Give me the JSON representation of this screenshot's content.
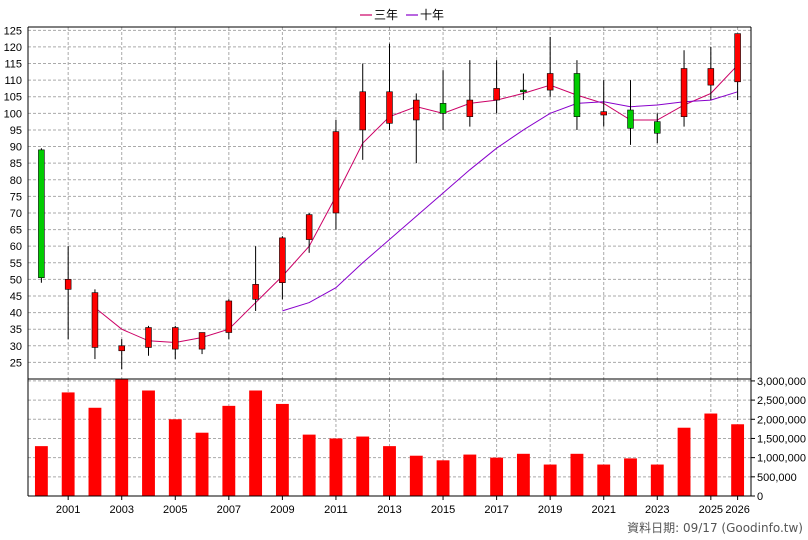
{
  "legend": [
    {
      "label": "三年",
      "color": "#cc0066"
    },
    {
      "label": "十年",
      "color": "#8800cc"
    }
  ],
  "footer": "資料日期: 09/17 (Goodinfo.tw)",
  "colors": {
    "up": "#ff0000",
    "down": "#00cc00",
    "volume": "#ff0000",
    "grid": "#aaaaaa",
    "wick": "#000000"
  },
  "chart_data": [
    {
      "type": "candlestick",
      "title": "",
      "x": [
        "2000",
        "2001",
        "2002",
        "2003",
        "2004",
        "2005",
        "2006",
        "2007",
        "2008",
        "2009",
        "2010",
        "2011",
        "2012",
        "2013",
        "2014",
        "2015",
        "2016",
        "2017",
        "2018",
        "2019",
        "2020",
        "2021",
        "2022",
        "2023",
        "2024",
        "2025",
        "2026"
      ],
      "open": [
        89,
        47,
        29.5,
        28.5,
        29.5,
        29,
        29,
        34,
        44,
        49,
        62,
        70,
        95,
        97,
        98,
        103,
        99,
        104,
        107,
        107,
        112,
        99.5,
        101,
        97.5,
        99,
        108.5,
        109.5
      ],
      "close": [
        50.5,
        50,
        46,
        30,
        35.5,
        35.5,
        34,
        43.5,
        48.5,
        62.5,
        69.5,
        94.5,
        106.5,
        106.5,
        104,
        100,
        104,
        107.5,
        106.5,
        112,
        99,
        100.5,
        95.5,
        94,
        113.5,
        113.5,
        124
      ],
      "high": [
        89.5,
        60,
        47,
        32,
        36,
        36,
        34,
        44,
        60,
        63,
        70,
        98,
        115,
        121,
        106,
        113,
        116,
        116,
        112,
        123,
        116,
        110,
        110,
        100,
        119,
        120,
        124
      ],
      "low": [
        49,
        32,
        26,
        23,
        27,
        26,
        27.5,
        32,
        40.5,
        44,
        58,
        65,
        86,
        95,
        85,
        95,
        96,
        100,
        104,
        105,
        95,
        96,
        90.5,
        91,
        96,
        104,
        104
      ],
      "series": [
        {
          "name": "三年",
          "values": [
            null,
            null,
            41.5,
            35,
            31.5,
            31,
            32.5,
            35,
            43,
            51,
            60,
            75,
            91,
            99,
            102,
            100,
            103,
            104,
            106,
            108.5,
            105.5,
            103,
            98,
            98,
            102.5,
            106,
            114.5
          ]
        },
        {
          "name": "十年",
          "values": [
            null,
            null,
            null,
            null,
            null,
            null,
            null,
            null,
            null,
            40.5,
            43,
            47.5,
            55,
            62,
            69,
            76,
            83,
            89.5,
            95,
            100,
            103,
            103.5,
            102,
            102.5,
            103.5,
            104,
            106.5
          ]
        }
      ],
      "ylim": [
        20,
        126
      ],
      "yticks": [
        25,
        30,
        35,
        40,
        45,
        50,
        55,
        60,
        65,
        70,
        75,
        80,
        85,
        90,
        95,
        100,
        105,
        110,
        115,
        120,
        125
      ],
      "ytick_labels": [
        "25",
        "30",
        "35",
        "40",
        "45",
        "50",
        "55",
        "60",
        "65",
        "70",
        "75",
        "80",
        "85",
        "90",
        "95",
        "100",
        "105",
        "110",
        "115",
        "120",
        "125"
      ],
      "grid": true,
      "legend_position": "top-center"
    },
    {
      "type": "bar",
      "title": "",
      "x": [
        "2000",
        "2001",
        "2002",
        "2003",
        "2004",
        "2005",
        "2006",
        "2007",
        "2008",
        "2009",
        "2010",
        "2011",
        "2012",
        "2013",
        "2014",
        "2015",
        "2016",
        "2017",
        "2018",
        "2019",
        "2020",
        "2021",
        "2022",
        "2023",
        "2024",
        "2025",
        "2026"
      ],
      "values": [
        1300000,
        2700000,
        2300000,
        3050000,
        2750000,
        2000000,
        1650000,
        2350000,
        2750000,
        2400000,
        1600000,
        1500000,
        1550000,
        1300000,
        1050000,
        930000,
        1080000,
        1000000,
        1100000,
        820000,
        1100000,
        820000,
        980000,
        820000,
        1780000,
        2150000,
        1870000
      ],
      "ylim": [
        0,
        3050000
      ],
      "yticks": [
        0,
        500000,
        1000000,
        1500000,
        2000000,
        2500000,
        3000000
      ],
      "ytick_labels": [
        "0",
        "500,000",
        "1,000,000",
        "1,500,000",
        "2,000,000",
        "2,500,000",
        "3,000,000"
      ],
      "xtick_labels": [
        "2001",
        "2003",
        "2005",
        "2007",
        "2009",
        "2011",
        "2013",
        "2015",
        "2017",
        "2019",
        "2021",
        "2023",
        "2025",
        "2026"
      ],
      "grid": true
    }
  ]
}
